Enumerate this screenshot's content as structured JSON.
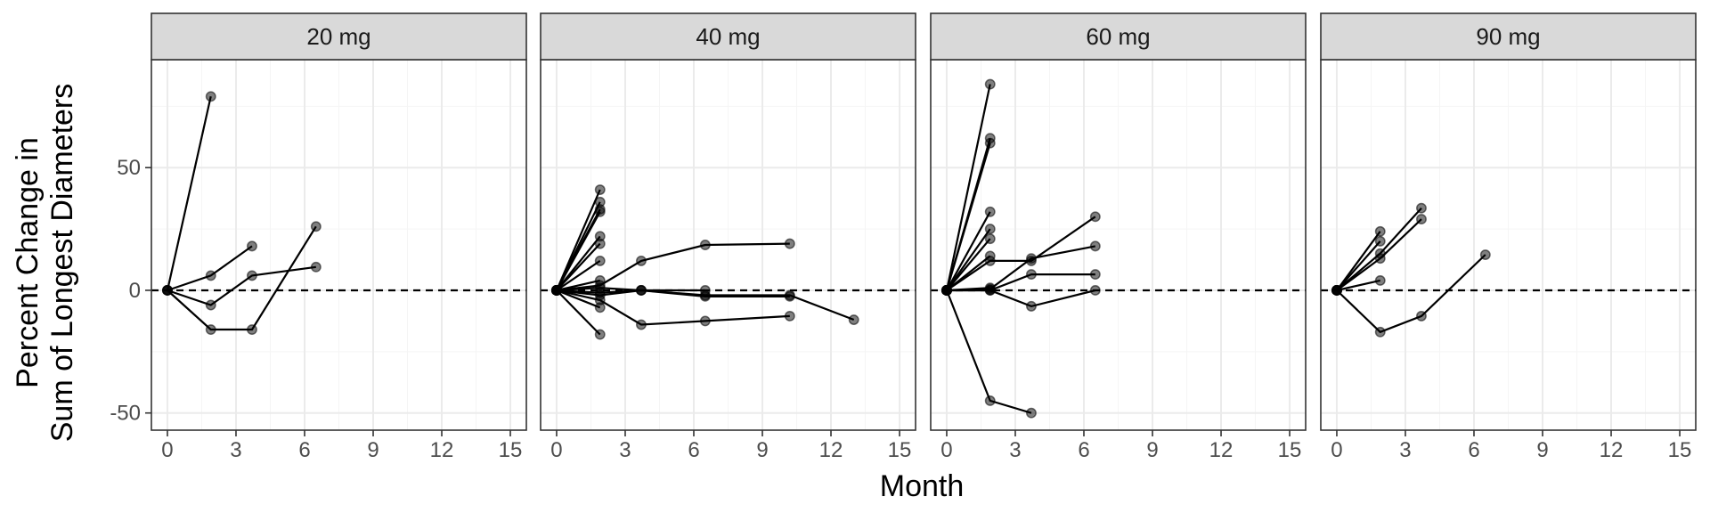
{
  "chart_data": {
    "type": "line",
    "facets": [
      "20 mg",
      "40 mg",
      "60 mg",
      "90 mg"
    ],
    "xlabel": "Month",
    "ylabel_lines": [
      "Percent Change in",
      "Sum of Longest Diameters"
    ],
    "x_ticks": [
      0,
      3,
      6,
      9,
      12,
      15
    ],
    "y_ticks": [
      50,
      0,
      -50
    ],
    "xlim": [
      -0.7,
      15.7
    ],
    "ylim": [
      -57,
      94
    ],
    "reference_line_y": 0,
    "panels": [
      {
        "facet": "20 mg",
        "series": [
          {
            "points": [
              [
                0,
                0
              ],
              [
                1.9,
                79
              ]
            ]
          },
          {
            "points": [
              [
                0,
                0
              ],
              [
                1.9,
                6
              ],
              [
                3.7,
                18
              ]
            ]
          },
          {
            "points": [
              [
                0,
                0
              ],
              [
                1.9,
                -6
              ],
              [
                3.7,
                6
              ],
              [
                6.5,
                9.5
              ]
            ]
          },
          {
            "points": [
              [
                0,
                0
              ],
              [
                1.9,
                -16
              ],
              [
                3.7,
                -16
              ],
              [
                6.5,
                26
              ]
            ]
          }
        ]
      },
      {
        "facet": "40 mg",
        "series": [
          {
            "points": [
              [
                0,
                0
              ],
              [
                1.9,
                41
              ]
            ]
          },
          {
            "points": [
              [
                0,
                0
              ],
              [
                1.9,
                36
              ]
            ]
          },
          {
            "points": [
              [
                0,
                0
              ],
              [
                1.9,
                33
              ]
            ]
          },
          {
            "points": [
              [
                0,
                0
              ],
              [
                1.9,
                32
              ]
            ]
          },
          {
            "points": [
              [
                0,
                0
              ],
              [
                1.9,
                22
              ]
            ]
          },
          {
            "points": [
              [
                0,
                0
              ],
              [
                1.9,
                19
              ]
            ]
          },
          {
            "points": [
              [
                0,
                0
              ],
              [
                1.9,
                12
              ]
            ]
          },
          {
            "points": [
              [
                0,
                0
              ],
              [
                1.9,
                4
              ]
            ]
          },
          {
            "points": [
              [
                0,
                0
              ],
              [
                1.9,
                -7
              ]
            ]
          },
          {
            "points": [
              [
                0,
                0
              ],
              [
                1.9,
                -18
              ]
            ]
          },
          {
            "points": [
              [
                0,
                0
              ],
              [
                1.9,
                2
              ],
              [
                3.7,
                12
              ],
              [
                6.5,
                18.5
              ],
              [
                10.2,
                19
              ]
            ]
          },
          {
            "points": [
              [
                0,
                0
              ],
              [
                1.9,
                1
              ],
              [
                3.7,
                0
              ],
              [
                6.5,
                0
              ]
            ]
          },
          {
            "points": [
              [
                0,
                0
              ],
              [
                1.9,
                -1
              ],
              [
                3.7,
                0
              ],
              [
                6.5,
                -2.5
              ],
              [
                10.2,
                -2.5
              ]
            ]
          },
          {
            "points": [
              [
                0,
                0
              ],
              [
                1.9,
                -2
              ],
              [
                3.7,
                0
              ],
              [
                6.5,
                -2
              ],
              [
                10.2,
                -2
              ],
              [
                13,
                -12
              ]
            ]
          },
          {
            "points": [
              [
                0,
                0
              ],
              [
                1.9,
                -4
              ],
              [
                3.7,
                -14
              ],
              [
                6.5,
                -12.5
              ],
              [
                10.2,
                -10.5
              ]
            ]
          }
        ]
      },
      {
        "facet": "60 mg",
        "series": [
          {
            "points": [
              [
                0,
                0
              ],
              [
                1.9,
                84
              ]
            ]
          },
          {
            "points": [
              [
                0,
                0
              ],
              [
                1.9,
                62
              ]
            ]
          },
          {
            "points": [
              [
                0,
                0
              ],
              [
                1.9,
                60
              ]
            ]
          },
          {
            "points": [
              [
                0,
                0
              ],
              [
                1.9,
                32
              ]
            ]
          },
          {
            "points": [
              [
                0,
                0
              ],
              [
                1.9,
                25
              ]
            ]
          },
          {
            "points": [
              [
                0,
                0
              ],
              [
                1.9,
                21
              ]
            ]
          },
          {
            "points": [
              [
                0,
                0
              ],
              [
                1.9,
                14
              ]
            ]
          },
          {
            "points": [
              [
                0,
                0
              ],
              [
                1.9,
                1
              ]
            ]
          },
          {
            "points": [
              [
                0,
                0
              ],
              [
                1.9,
                12
              ],
              [
                3.7,
                12
              ],
              [
                6.5,
                30
              ]
            ]
          },
          {
            "points": [
              [
                0,
                0
              ],
              [
                1.9,
                0.5
              ],
              [
                3.7,
                13
              ],
              [
                6.5,
                18
              ]
            ]
          },
          {
            "points": [
              [
                0,
                0
              ],
              [
                1.9,
                0
              ],
              [
                3.7,
                6.5
              ],
              [
                6.5,
                6.5
              ]
            ]
          },
          {
            "points": [
              [
                0,
                0
              ],
              [
                1.9,
                0
              ],
              [
                3.7,
                -6.5
              ],
              [
                6.5,
                0
              ]
            ]
          },
          {
            "points": [
              [
                0,
                0
              ],
              [
                1.9,
                -45
              ],
              [
                3.7,
                -50
              ]
            ]
          }
        ]
      },
      {
        "facet": "90 mg",
        "series": [
          {
            "points": [
              [
                0,
                0
              ],
              [
                1.9,
                24
              ]
            ]
          },
          {
            "points": [
              [
                0,
                0
              ],
              [
                1.9,
                20
              ]
            ]
          },
          {
            "points": [
              [
                0,
                0
              ],
              [
                1.9,
                4
              ]
            ]
          },
          {
            "points": [
              [
                0,
                0
              ],
              [
                1.9,
                15
              ],
              [
                3.7,
                33.5
              ]
            ]
          },
          {
            "points": [
              [
                0,
                0
              ],
              [
                1.9,
                13
              ],
              [
                3.7,
                29
              ]
            ]
          },
          {
            "points": [
              [
                0,
                0
              ],
              [
                1.9,
                -17
              ],
              [
                3.7,
                -10.5
              ],
              [
                6.5,
                14.5
              ]
            ]
          }
        ]
      }
    ],
    "colors": {
      "strip_fill": "#d9d9d9",
      "panel_border": "#333333",
      "grid_major": "#ebebeb",
      "grid_minor": "#f5f5f5",
      "line": "#000000",
      "point_fill": "rgba(0,0,0,0.5)",
      "tick_text": "#4d4d4d"
    },
    "grid": true,
    "legend": "none"
  }
}
